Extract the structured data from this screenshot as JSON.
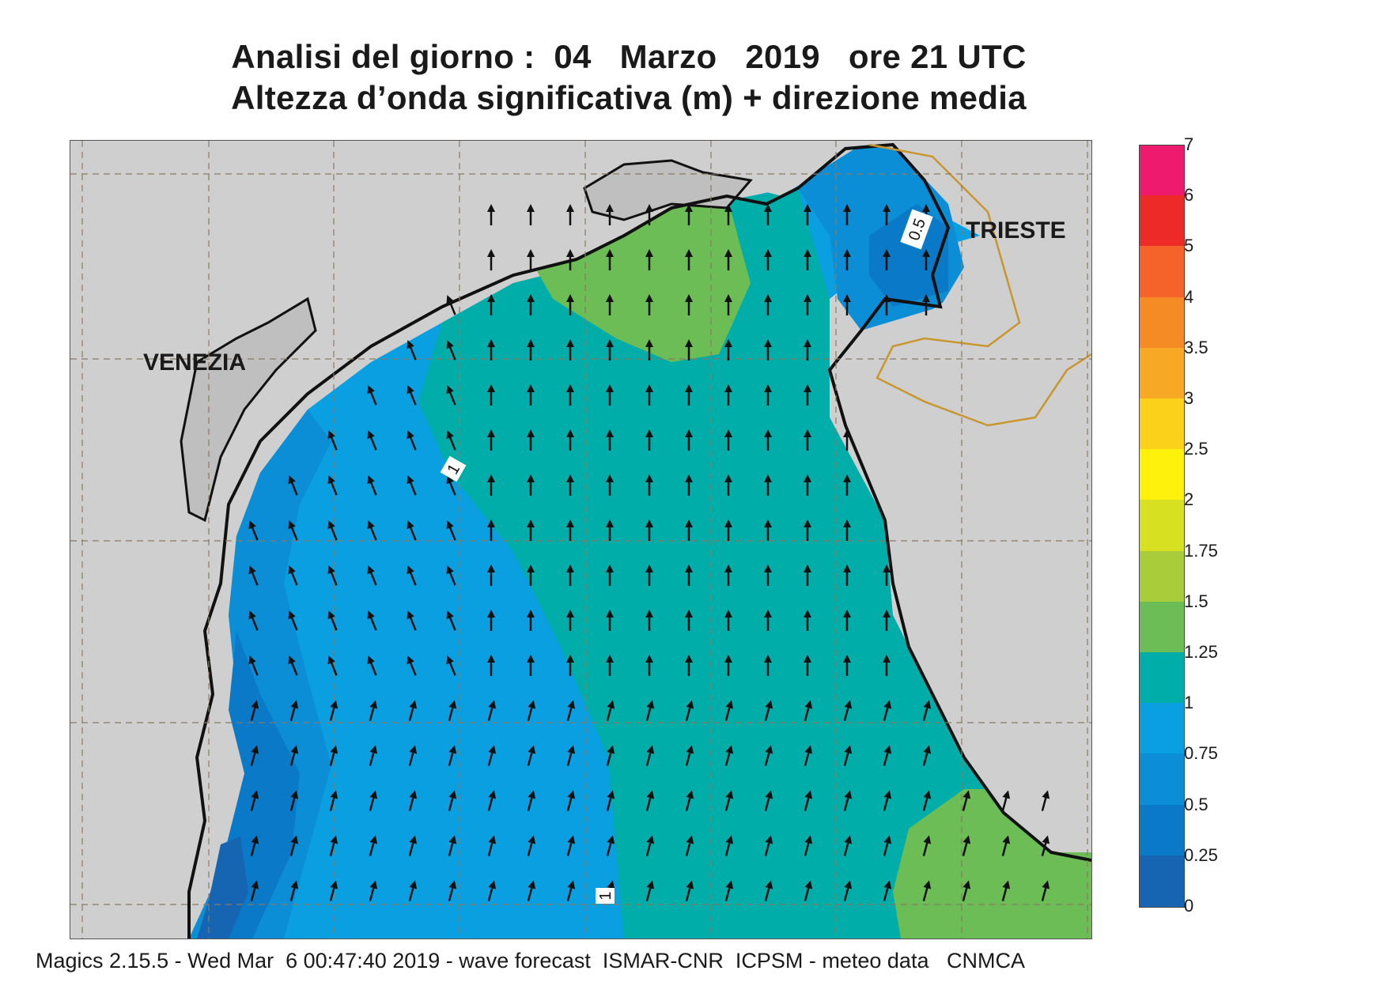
{
  "title": {
    "line1": "Analisi del giorno :  04   Marzo   2019   ore 21 UTC",
    "line2": "Altezza d’onda significativa (m) + direzione media"
  },
  "map": {
    "cities": [
      "VENEZIA",
      "TRIESTE"
    ],
    "contour_labels": [
      "0.5",
      "1",
      "1"
    ],
    "colors": {
      "land": "#cfcfcf",
      "land_alt": "#bfbfbf",
      "coast": "#111111",
      "border": "#c8962e",
      "grid": "#8a7a62",
      "arrow": "#111111"
    },
    "wave_direction": "north / north-north-east"
  },
  "colorbar": {
    "levels": [
      "7",
      "6",
      "5",
      "4",
      "3.5",
      "3",
      "2.5",
      "2",
      "1.75",
      "1.5",
      "1.25",
      "1",
      "0.75",
      "0.5",
      "0.25",
      "0"
    ],
    "colors": [
      "#ee1a6e",
      "#ee2a28",
      "#f5622a",
      "#f58b24",
      "#f7a824",
      "#fbd11a",
      "#fef10c",
      "#d7e021",
      "#a9cd3a",
      "#6cbd55",
      "#00ada8",
      "#0a9fe1",
      "#0b8ed6",
      "#0a79c7",
      "#1565b3"
    ]
  },
  "footer": "Magics 2.15.5 - Wed Mar  6 00:47:40 2019 - wave forecast  ISMAR-CNR  ICPSM - meteo data   CNMCA"
}
